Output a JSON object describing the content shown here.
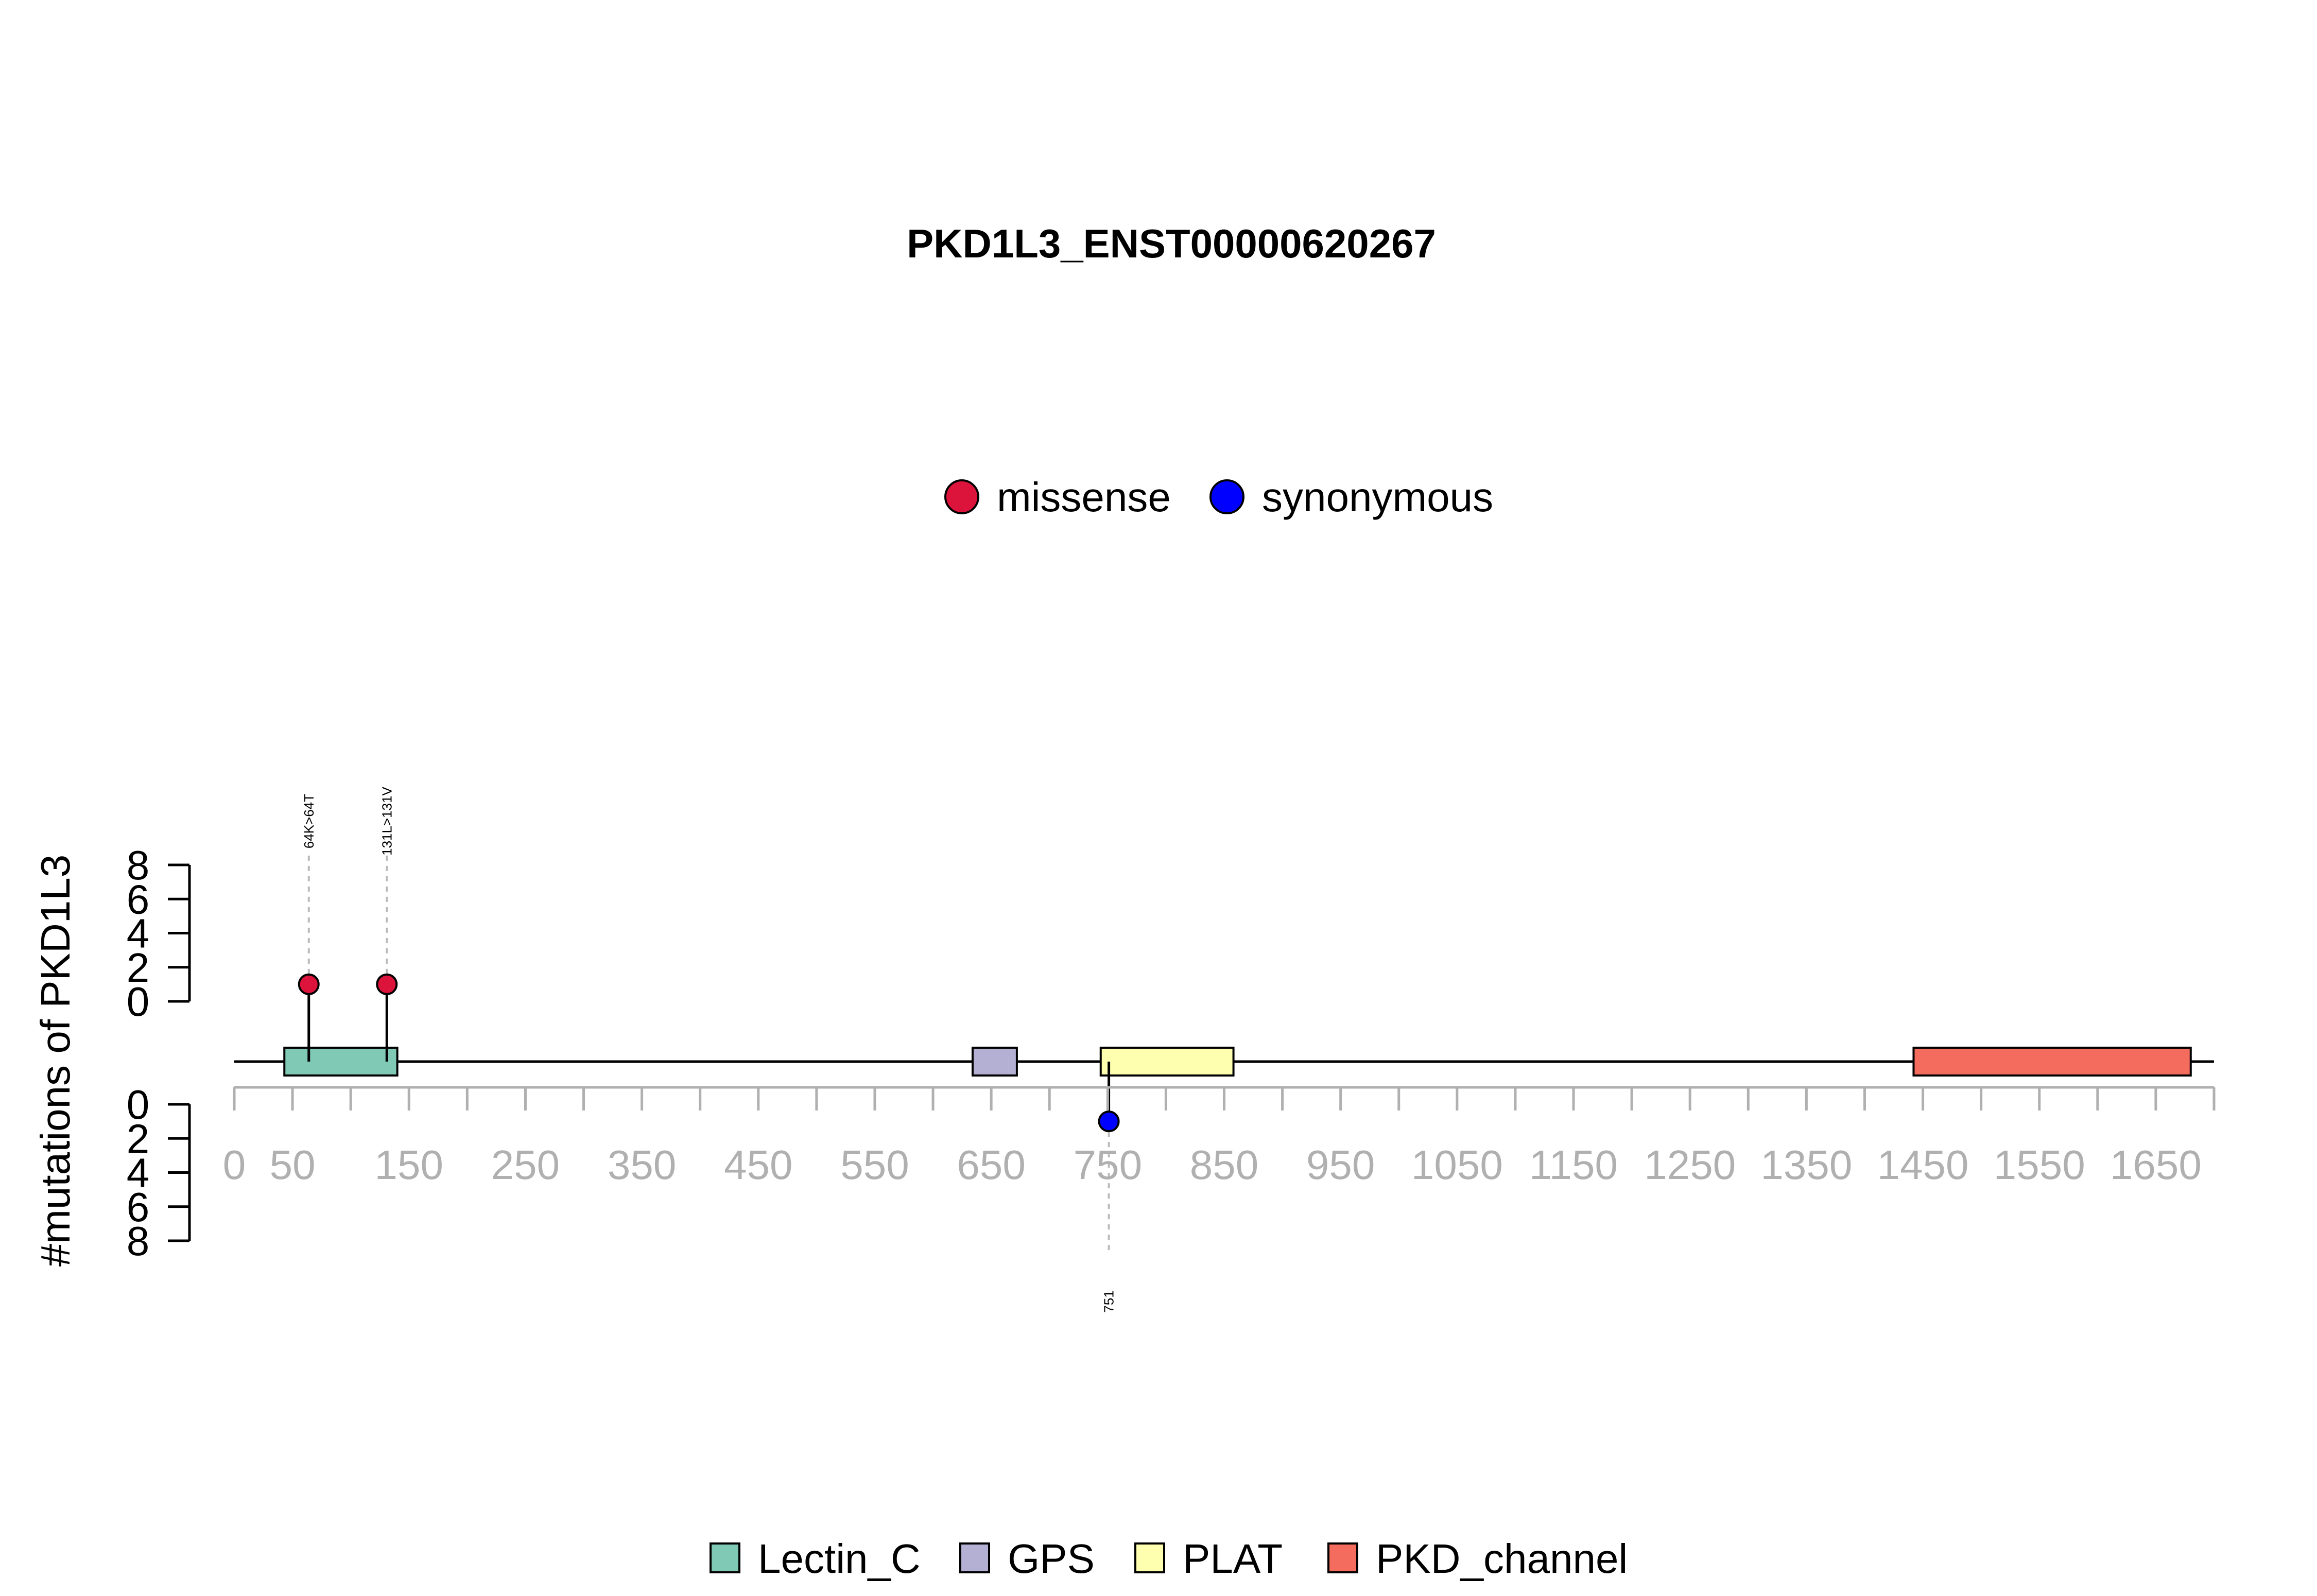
{
  "chart_data": {
    "type": "lollipop",
    "title": "PKD1L3_ENST00000620267",
    "ylabel": "#mutations of PKD1L3",
    "xlim": [
      0,
      1700
    ],
    "x_ticks": [
      0,
      50,
      150,
      250,
      350,
      450,
      550,
      650,
      750,
      850,
      950,
      1050,
      1150,
      1250,
      1350,
      1450,
      1550,
      1650
    ],
    "y_ticks_top": [
      0,
      2,
      4,
      6,
      8
    ],
    "y_ticks_bottom": [
      0,
      2,
      4,
      6,
      8
    ],
    "ylim": [
      0,
      8
    ],
    "mutation_legend": [
      {
        "label": "missense",
        "color": "#DC143C"
      },
      {
        "label": "synonymous",
        "color": "#0000FF"
      }
    ],
    "domain_legend": [
      {
        "label": "Lectin_C",
        "color": "#7FC9B5"
      },
      {
        "label": "GPS",
        "color": "#B3B0D4"
      },
      {
        "label": "PLAT",
        "color": "#FFFFB0"
      },
      {
        "label": "PKD_channel",
        "color": "#F46C5D"
      }
    ],
    "domains": [
      {
        "name": "Lectin_C",
        "start": 43,
        "end": 140,
        "color": "#7FC9B5"
      },
      {
        "name": "GPS",
        "start": 634,
        "end": 672,
        "color": "#B3B0D4"
      },
      {
        "name": "PLAT",
        "start": 744,
        "end": 858,
        "color": "#FFFFB0"
      },
      {
        "name": "PKD_channel",
        "start": 1442,
        "end": 1680,
        "color": "#F46C5D"
      }
    ],
    "mutations": [
      {
        "position": 64,
        "count": 1,
        "type": "missense",
        "label": "64K>64T",
        "color": "#DC143C",
        "side": "top"
      },
      {
        "position": 131,
        "count": 1,
        "type": "missense",
        "label": "131L>131V",
        "color": "#DC143C",
        "side": "top"
      },
      {
        "position": 751,
        "count": 1,
        "type": "synonymous",
        "label": "751",
        "color": "#0000FF",
        "side": "bottom"
      }
    ]
  }
}
